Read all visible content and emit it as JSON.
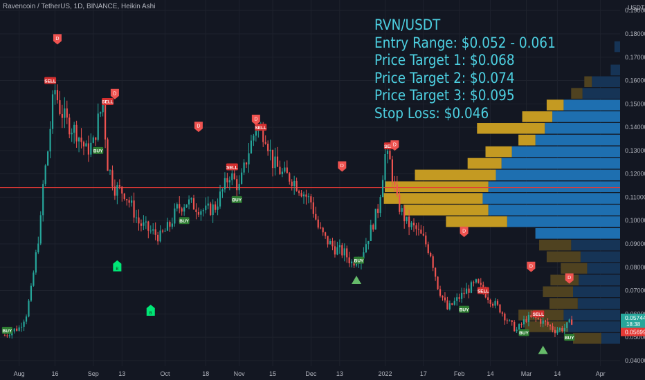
{
  "header": {
    "title": "Ravencoin / TetherUS, 1D, BINANCE, Heikin Ashi"
  },
  "annotation": {
    "lines": [
      "RVN/USDT",
      "Entry Range: $0.052 - 0.061",
      "Price Target 1: $0.068",
      "Price Target 2: $0.074",
      "Price Target 3: $0.095",
      "Stop Loss: $0.046"
    ]
  },
  "colors": {
    "background": "#131722",
    "up": "#26a69a",
    "down": "#ef5350",
    "grid": "#1e222d",
    "hline": "#e53935",
    "vp_up": "#1e6fb0",
    "vp_down": "#c49a22",
    "vp_up_dim": "#163456",
    "vp_down_dim": "#4f4220",
    "annotation": "#4dd0e1"
  },
  "chart_data": {
    "type": "candlestick",
    "title": "Ravencoin / TetherUS, 1D, BINANCE, Heikin Ashi",
    "y_axis": {
      "unit_label": "USDT",
      "ticks": [
        "0.19000",
        "0.18000",
        "0.17000",
        "0.16000",
        "0.15000",
        "0.14000",
        "0.13000",
        "0.12000",
        "0.11000",
        "0.10000",
        "0.09000",
        "0.08000",
        "0.07000",
        "0.06000",
        "0.05000",
        "0.04000"
      ],
      "range": [
        0.0376,
        0.1945
      ]
    },
    "x_axis": {
      "ticks": [
        "Aug",
        "16",
        "Sep",
        "13",
        "Oct",
        "18",
        "Nov",
        "15",
        "Dec",
        "13",
        "2022",
        "17",
        "Feb",
        "14",
        "Mar",
        "14",
        "Apr"
      ]
    },
    "price_labels": [
      {
        "label": "USDT",
        "kind": "unit"
      },
      {
        "label": "0.05744",
        "sub": "18:38",
        "kind": "current"
      },
      {
        "label": "0.05699",
        "kind": "reference"
      }
    ],
    "horizontal_line": {
      "value": 0.1141,
      "color": "#e53935"
    },
    "series_close": [
      {
        "date": "2021-07-26",
        "close": 0.0508
      },
      {
        "date": "2021-07-29",
        "close": 0.0528
      },
      {
        "date": "2021-08-01",
        "close": 0.054
      },
      {
        "date": "2021-08-04",
        "close": 0.06
      },
      {
        "date": "2021-08-06",
        "close": 0.07
      },
      {
        "date": "2021-08-08",
        "close": 0.085
      },
      {
        "date": "2021-08-10",
        "close": 0.1
      },
      {
        "date": "2021-08-11",
        "close": 0.115
      },
      {
        "date": "2021-08-13",
        "close": 0.13
      },
      {
        "date": "2021-08-15",
        "close": 0.15
      },
      {
        "date": "2021-08-16",
        "close": 0.156
      },
      {
        "date": "2021-08-18",
        "close": 0.148
      },
      {
        "date": "2021-08-21",
        "close": 0.142
      },
      {
        "date": "2021-08-25",
        "close": 0.138
      },
      {
        "date": "2021-08-29",
        "close": 0.13
      },
      {
        "date": "2021-09-01",
        "close": 0.133
      },
      {
        "date": "2021-09-03",
        "close": 0.143
      },
      {
        "date": "2021-09-05",
        "close": 0.15
      },
      {
        "date": "2021-09-07",
        "close": 0.124
      },
      {
        "date": "2021-09-10",
        "close": 0.114
      },
      {
        "date": "2021-09-14",
        "close": 0.112
      },
      {
        "date": "2021-09-17",
        "close": 0.106
      },
      {
        "date": "2021-09-20",
        "close": 0.099
      },
      {
        "date": "2021-09-24",
        "close": 0.096
      },
      {
        "date": "2021-09-29",
        "close": 0.093
      },
      {
        "date": "2021-10-03",
        "close": 0.098
      },
      {
        "date": "2021-10-06",
        "close": 0.105
      },
      {
        "date": "2021-10-10",
        "close": 0.108
      },
      {
        "date": "2021-10-14",
        "close": 0.106
      },
      {
        "date": "2021-10-18",
        "close": 0.104
      },
      {
        "date": "2021-10-22",
        "close": 0.106
      },
      {
        "date": "2021-10-26",
        "close": 0.115
      },
      {
        "date": "2021-10-28",
        "close": 0.12
      },
      {
        "date": "2021-11-01",
        "close": 0.114
      },
      {
        "date": "2021-11-05",
        "close": 0.13
      },
      {
        "date": "2021-11-08",
        "close": 0.14
      },
      {
        "date": "2021-11-12",
        "close": 0.137
      },
      {
        "date": "2021-11-15",
        "close": 0.125
      },
      {
        "date": "2021-11-19",
        "close": 0.12
      },
      {
        "date": "2021-11-23",
        "close": 0.118
      },
      {
        "date": "2021-11-27",
        "close": 0.113
      },
      {
        "date": "2021-12-01",
        "close": 0.108
      },
      {
        "date": "2021-12-04",
        "close": 0.097
      },
      {
        "date": "2021-12-07",
        "close": 0.092
      },
      {
        "date": "2021-12-11",
        "close": 0.088
      },
      {
        "date": "2021-12-15",
        "close": 0.086
      },
      {
        "date": "2021-12-18",
        "close": 0.082
      },
      {
        "date": "2021-12-22",
        "close": 0.085
      },
      {
        "date": "2021-12-26",
        "close": 0.096
      },
      {
        "date": "2021-12-29",
        "close": 0.105
      },
      {
        "date": "2022-01-01",
        "close": 0.128
      },
      {
        "date": "2022-01-03",
        "close": 0.125
      },
      {
        "date": "2022-01-06",
        "close": 0.108
      },
      {
        "date": "2022-01-10",
        "close": 0.099
      },
      {
        "date": "2022-01-14",
        "close": 0.096
      },
      {
        "date": "2022-01-17",
        "close": 0.092
      },
      {
        "date": "2022-01-20",
        "close": 0.086
      },
      {
        "date": "2022-01-23",
        "close": 0.072
      },
      {
        "date": "2022-01-27",
        "close": 0.062
      },
      {
        "date": "2022-01-31",
        "close": 0.066
      },
      {
        "date": "2022-02-04",
        "close": 0.07
      },
      {
        "date": "2022-02-08",
        "close": 0.073
      },
      {
        "date": "2022-02-11",
        "close": 0.07
      },
      {
        "date": "2022-02-15",
        "close": 0.065
      },
      {
        "date": "2022-02-18",
        "close": 0.062
      },
      {
        "date": "2022-02-22",
        "close": 0.056
      },
      {
        "date": "2022-02-25",
        "close": 0.053
      },
      {
        "date": "2022-03-01",
        "close": 0.058
      },
      {
        "date": "2022-03-05",
        "close": 0.058
      },
      {
        "date": "2022-03-09",
        "close": 0.056
      },
      {
        "date": "2022-03-13",
        "close": 0.053
      },
      {
        "date": "2022-03-17",
        "close": 0.054
      },
      {
        "date": "2022-03-20",
        "close": 0.057
      }
    ],
    "signals": [
      {
        "type": "BUY",
        "date": "2021-07-27",
        "price": 0.053
      },
      {
        "type": "SELL",
        "date": "2021-08-14",
        "price": 0.16
      },
      {
        "type": "BUY",
        "date": "2021-09-03",
        "price": 0.13
      },
      {
        "type": "SELL",
        "date": "2021-09-07",
        "price": 0.151
      },
      {
        "type": "BUY",
        "date": "2021-10-09",
        "price": 0.1
      },
      {
        "type": "BUY",
        "date": "2021-10-31",
        "price": 0.109
      },
      {
        "type": "SELL",
        "date": "2021-10-29",
        "price": 0.123
      },
      {
        "type": "SELL",
        "date": "2021-11-10",
        "price": 0.14
      },
      {
        "type": "BUY",
        "date": "2021-12-21",
        "price": 0.083
      },
      {
        "type": "SELL",
        "date": "2022-01-03",
        "price": 0.132
      },
      {
        "type": "BUY",
        "date": "2022-02-03",
        "price": 0.062
      },
      {
        "type": "SELL",
        "date": "2022-02-11",
        "price": 0.07
      },
      {
        "type": "SELL",
        "date": "2022-03-06",
        "price": 0.06
      },
      {
        "type": "BUY",
        "date": "2022-02-28",
        "price": 0.052
      },
      {
        "type": "BUY",
        "date": "2022-03-19",
        "price": 0.05
      }
    ],
    "d_markers": [
      {
        "date": "2021-08-17",
        "price": 0.1775
      },
      {
        "date": "2021-09-10",
        "price": 0.154
      },
      {
        "date": "2021-10-15",
        "price": 0.14
      },
      {
        "date": "2021-11-08",
        "price": 0.143
      },
      {
        "date": "2021-12-14",
        "price": 0.123
      },
      {
        "date": "2022-01-05",
        "price": 0.132
      },
      {
        "date": "2022-02-03",
        "price": 0.095
      },
      {
        "date": "2022-03-03",
        "price": 0.08
      },
      {
        "date": "2022-03-19",
        "price": 0.075
      }
    ],
    "b_markers": [
      {
        "date": "2021-09-11",
        "price": 0.08
      },
      {
        "date": "2021-09-25",
        "price": 0.061
      }
    ],
    "triangles": [
      {
        "date": "2021-12-20",
        "price": 0.074
      },
      {
        "date": "2022-03-08",
        "price": 0.044
      }
    ],
    "volume_profile": [
      {
        "price": 0.1745,
        "up": 6,
        "down": 0,
        "dim": true
      },
      {
        "price": 0.1645,
        "up": 10,
        "down": 0,
        "dim": true
      },
      {
        "price": 0.1595,
        "up": 30,
        "down": 8,
        "dim": true
      },
      {
        "price": 0.1545,
        "up": 40,
        "down": 12,
        "dim": true
      },
      {
        "price": 0.1495,
        "up": 60,
        "down": 18,
        "dim": false
      },
      {
        "price": 0.1445,
        "up": 72,
        "down": 32,
        "dim": false
      },
      {
        "price": 0.1395,
        "up": 80,
        "down": 72,
        "dim": false
      },
      {
        "price": 0.1345,
        "up": 90,
        "down": 18,
        "dim": false
      },
      {
        "price": 0.1295,
        "up": 115,
        "down": 28,
        "dim": false
      },
      {
        "price": 0.1245,
        "up": 126,
        "down": 36,
        "dim": false
      },
      {
        "price": 0.1195,
        "up": 132,
        "down": 86,
        "dim": false
      },
      {
        "price": 0.1145,
        "up": 140,
        "down": 110,
        "dim": false
      },
      {
        "price": 0.1095,
        "up": 146,
        "down": 105,
        "dim": false
      },
      {
        "price": 0.1045,
        "up": 140,
        "down": 90,
        "dim": false
      },
      {
        "price": 0.0995,
        "up": 120,
        "down": 65,
        "dim": false
      },
      {
        "price": 0.0945,
        "up": 90,
        "down": 0,
        "dim": false
      },
      {
        "price": 0.0895,
        "up": 52,
        "down": 34,
        "dim": true
      },
      {
        "price": 0.0845,
        "up": 42,
        "down": 36,
        "dim": true
      },
      {
        "price": 0.0795,
        "up": 35,
        "down": 28,
        "dim": true
      },
      {
        "price": 0.0745,
        "up": 44,
        "down": 30,
        "dim": true
      },
      {
        "price": 0.0695,
        "up": 50,
        "down": 32,
        "dim": true
      },
      {
        "price": 0.0645,
        "up": 45,
        "down": 30,
        "dim": true
      },
      {
        "price": 0.0595,
        "up": 60,
        "down": 48,
        "dim": true
      },
      {
        "price": 0.0545,
        "up": 55,
        "down": 46,
        "dim": true
      },
      {
        "price": 0.0495,
        "up": 20,
        "down": 30,
        "dim": true
      }
    ]
  }
}
